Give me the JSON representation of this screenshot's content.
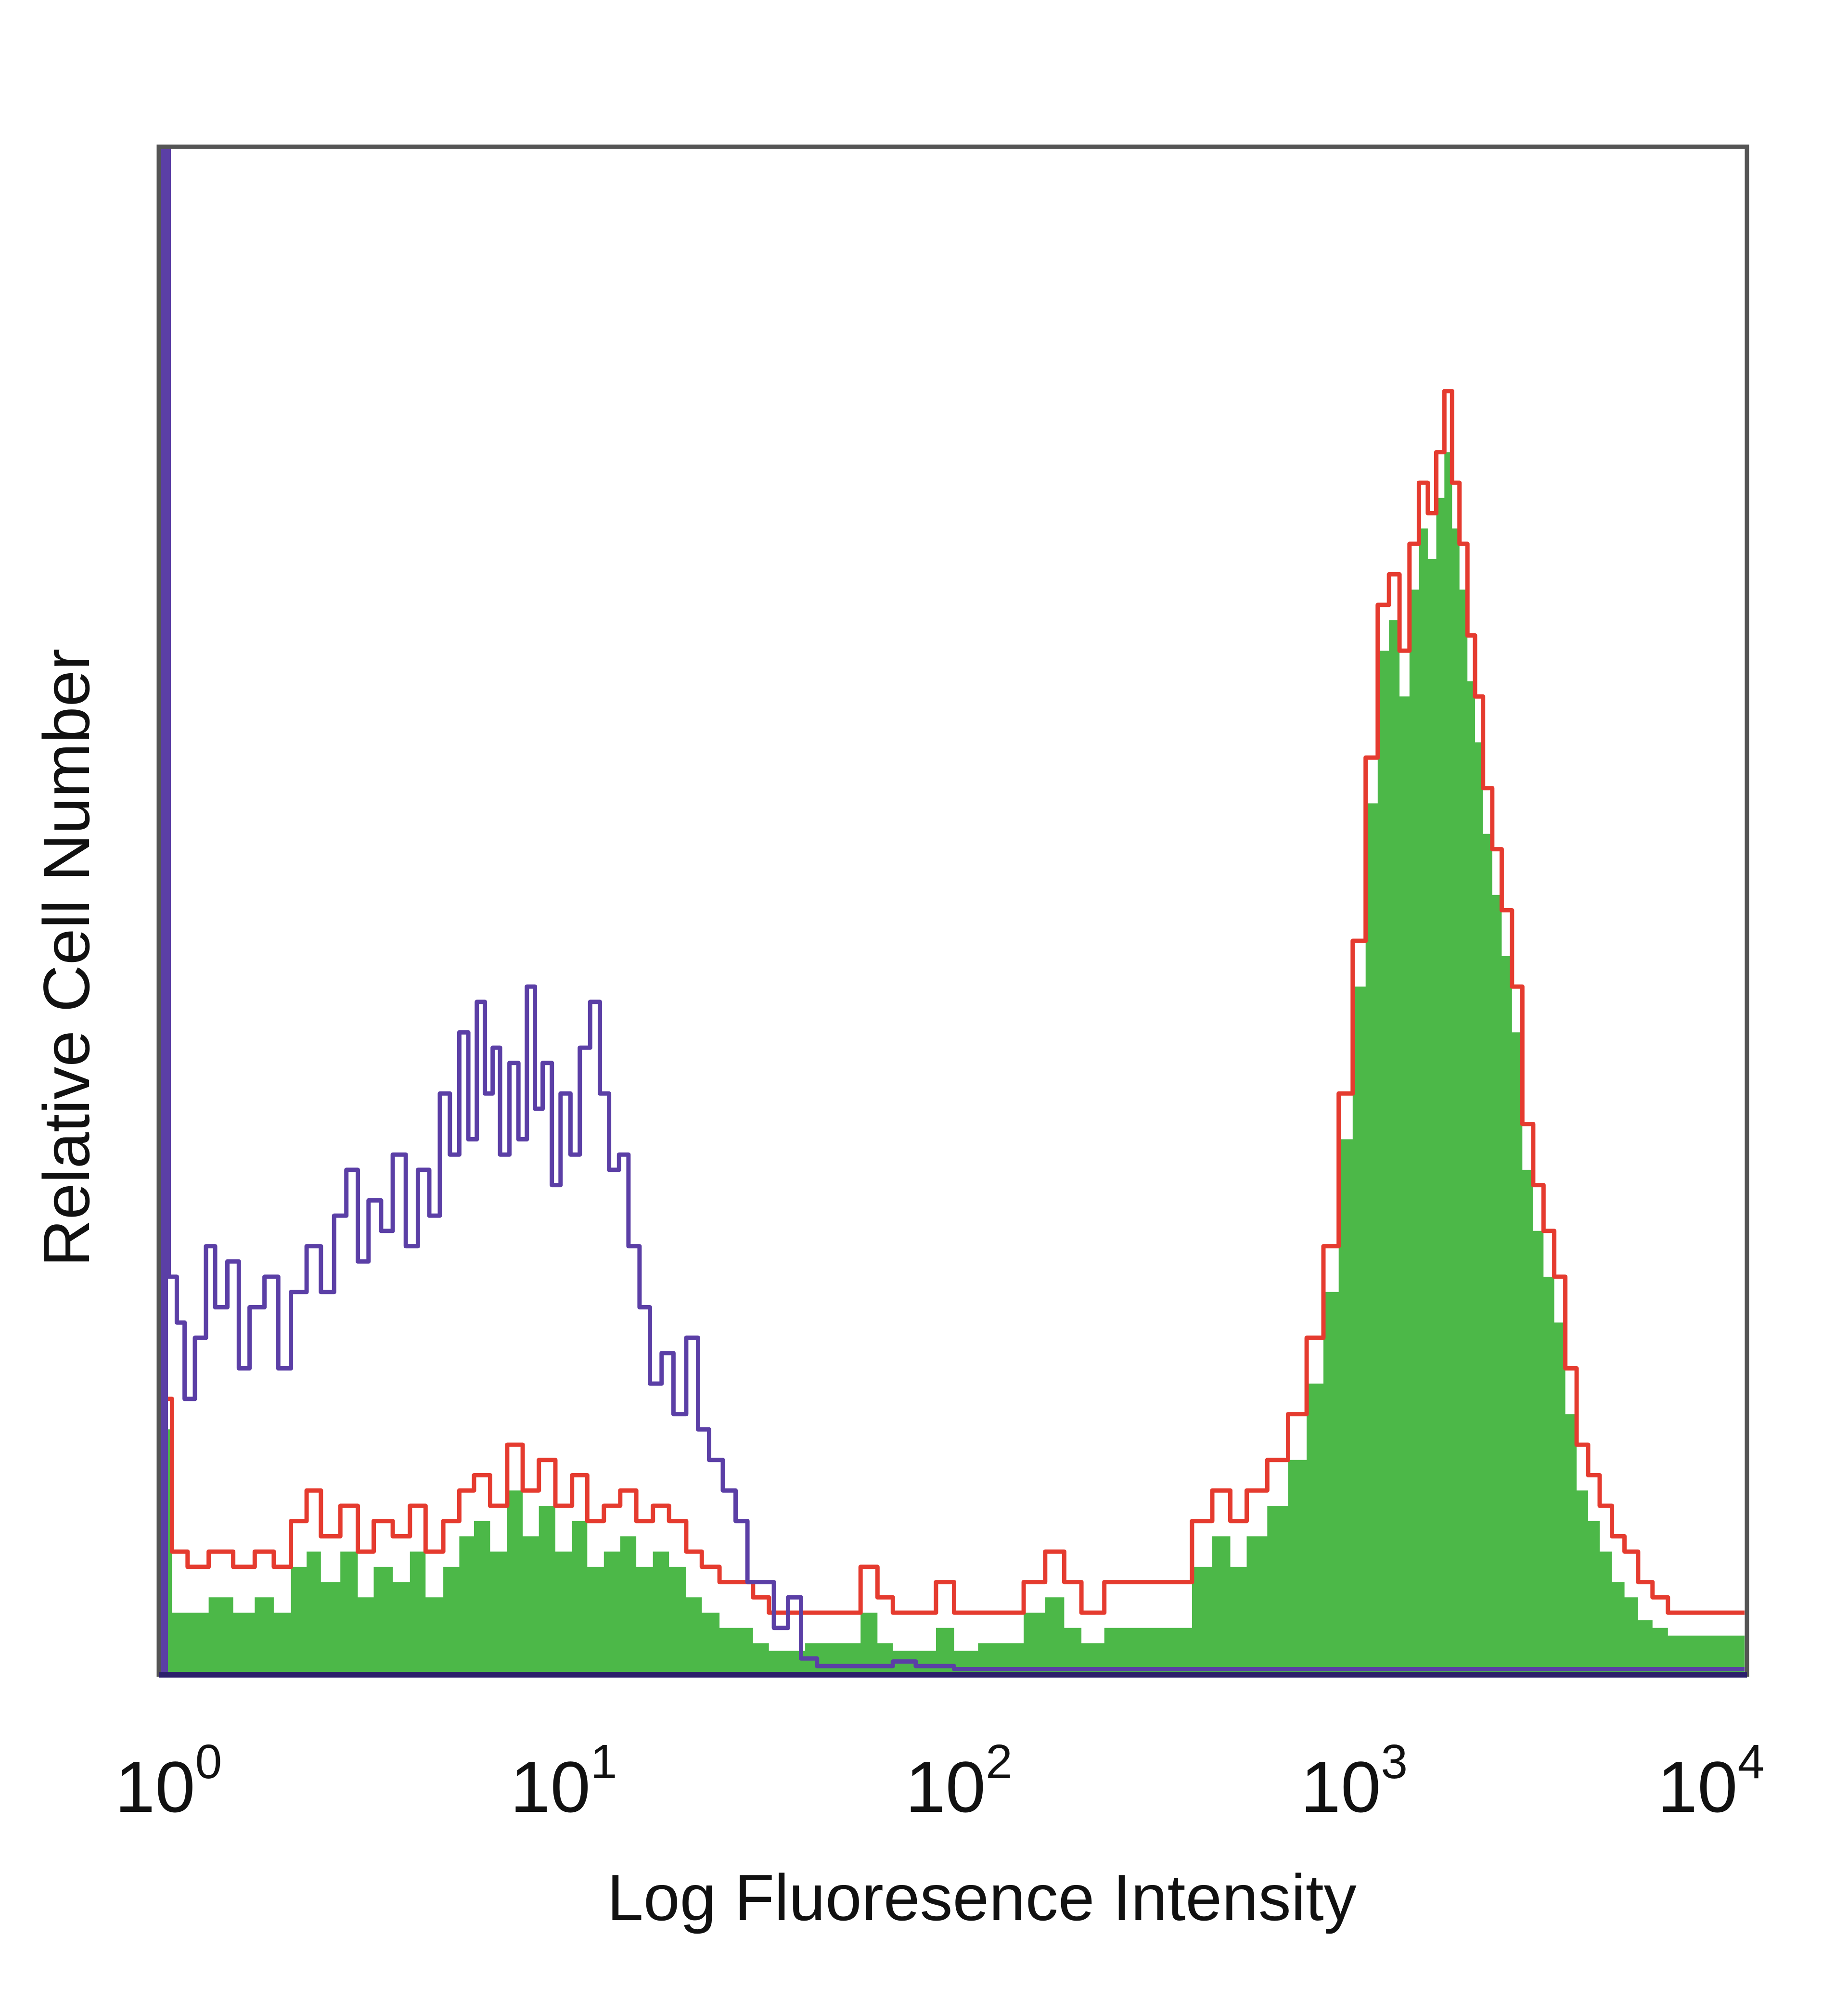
{
  "chart_data": {
    "type": "histogram",
    "xlabel": "Log Fluoresence Intensity",
    "ylabel": "Relative Cell Number",
    "x_scale": "log",
    "xlim": [
      1,
      10000
    ],
    "ylim": [
      0,
      100
    ],
    "x_ticks": [
      {
        "base": "10",
        "exp": "0",
        "value": 1
      },
      {
        "base": "10",
        "exp": "1",
        "value": 10
      },
      {
        "base": "10",
        "exp": "2",
        "value": 100
      },
      {
        "base": "10",
        "exp": "3",
        "value": 1000
      },
      {
        "base": "10",
        "exp": "4",
        "value": 10000
      }
    ],
    "grid": false,
    "series": [
      {
        "style": "outline",
        "color": "#5b3fa6",
        "points": [
          [
            1.0,
            100
          ],
          [
            1.03,
            26
          ],
          [
            1.08,
            23
          ],
          [
            1.13,
            18
          ],
          [
            1.2,
            22
          ],
          [
            1.28,
            28
          ],
          [
            1.35,
            24
          ],
          [
            1.45,
            27
          ],
          [
            1.55,
            20
          ],
          [
            1.65,
            24
          ],
          [
            1.8,
            26
          ],
          [
            1.95,
            20
          ],
          [
            2.1,
            25
          ],
          [
            2.3,
            28
          ],
          [
            2.5,
            25
          ],
          [
            2.7,
            30
          ],
          [
            2.9,
            33
          ],
          [
            3.1,
            27
          ],
          [
            3.3,
            31
          ],
          [
            3.55,
            29
          ],
          [
            3.8,
            34
          ],
          [
            4.1,
            28
          ],
          [
            4.4,
            33
          ],
          [
            4.7,
            30
          ],
          [
            5.0,
            38
          ],
          [
            5.3,
            34
          ],
          [
            5.6,
            42
          ],
          [
            5.9,
            35
          ],
          [
            6.2,
            44
          ],
          [
            6.5,
            38
          ],
          [
            6.8,
            41
          ],
          [
            7.1,
            34
          ],
          [
            7.5,
            40
          ],
          [
            7.9,
            35
          ],
          [
            8.3,
            45
          ],
          [
            8.7,
            37
          ],
          [
            9.1,
            40
          ],
          [
            9.6,
            32
          ],
          [
            10.1,
            38
          ],
          [
            10.7,
            34
          ],
          [
            11.3,
            41
          ],
          [
            12.0,
            44
          ],
          [
            12.7,
            38
          ],
          [
            13.4,
            33
          ],
          [
            14.2,
            34
          ],
          [
            15.0,
            28
          ],
          [
            16.0,
            24
          ],
          [
            17.0,
            19
          ],
          [
            18.2,
            21
          ],
          [
            19.5,
            17
          ],
          [
            21.0,
            22
          ],
          [
            22.5,
            16
          ],
          [
            24.0,
            14
          ],
          [
            26.0,
            12
          ],
          [
            28.0,
            10
          ],
          [
            30.0,
            6
          ],
          [
            32.5,
            6
          ],
          [
            35.0,
            3
          ],
          [
            38.0,
            5
          ],
          [
            41.0,
            1
          ],
          [
            45.0,
            0.5
          ],
          [
            50.0,
            0.5
          ],
          [
            60.0,
            0.5
          ],
          [
            70.0,
            0.8
          ],
          [
            80.0,
            0.5
          ],
          [
            100.0,
            0.3
          ],
          [
            10000.0,
            0.3
          ]
        ]
      },
      {
        "style": "outline",
        "color": "#e53b2f",
        "points": [
          [
            1.0,
            18
          ],
          [
            1.05,
            8
          ],
          [
            1.15,
            7
          ],
          [
            1.3,
            8
          ],
          [
            1.5,
            7
          ],
          [
            1.7,
            8
          ],
          [
            1.9,
            7
          ],
          [
            2.1,
            10
          ],
          [
            2.3,
            12
          ],
          [
            2.5,
            9
          ],
          [
            2.8,
            11
          ],
          [
            3.1,
            8
          ],
          [
            3.4,
            10
          ],
          [
            3.8,
            9
          ],
          [
            4.2,
            11
          ],
          [
            4.6,
            8
          ],
          [
            5.1,
            10
          ],
          [
            5.6,
            12
          ],
          [
            6.1,
            13
          ],
          [
            6.7,
            11
          ],
          [
            7.4,
            15
          ],
          [
            8.1,
            12
          ],
          [
            8.9,
            14
          ],
          [
            9.8,
            11
          ],
          [
            10.8,
            13
          ],
          [
            11.8,
            10
          ],
          [
            13.0,
            11
          ],
          [
            14.3,
            12
          ],
          [
            15.7,
            10
          ],
          [
            17.3,
            11
          ],
          [
            19.0,
            10
          ],
          [
            21.0,
            8
          ],
          [
            23.0,
            7
          ],
          [
            25.5,
            6
          ],
          [
            28.0,
            6
          ],
          [
            31.0,
            5
          ],
          [
            34.0,
            4
          ],
          [
            38.0,
            4
          ],
          [
            42.0,
            4
          ],
          [
            47.0,
            4
          ],
          [
            52.0,
            4
          ],
          [
            58.0,
            7
          ],
          [
            64.0,
            5
          ],
          [
            70.0,
            4
          ],
          [
            80.0,
            4
          ],
          [
            90.0,
            6
          ],
          [
            100.0,
            4
          ],
          [
            115.0,
            4
          ],
          [
            130.0,
            4
          ],
          [
            150.0,
            6
          ],
          [
            170.0,
            8
          ],
          [
            190.0,
            6
          ],
          [
            210.0,
            4
          ],
          [
            240.0,
            6
          ],
          [
            270.0,
            6
          ],
          [
            300.0,
            6
          ],
          [
            350.0,
            6
          ],
          [
            400.0,
            10
          ],
          [
            450.0,
            12
          ],
          [
            500.0,
            10
          ],
          [
            550.0,
            12
          ],
          [
            620.0,
            14
          ],
          [
            700.0,
            17
          ],
          [
            780.0,
            22
          ],
          [
            860.0,
            28
          ],
          [
            940.0,
            38
          ],
          [
            1020.0,
            48
          ],
          [
            1100.0,
            60
          ],
          [
            1180.0,
            70
          ],
          [
            1260.0,
            72
          ],
          [
            1340.0,
            67
          ],
          [
            1420.0,
            74
          ],
          [
            1500.0,
            78
          ],
          [
            1580.0,
            76
          ],
          [
            1660.0,
            80
          ],
          [
            1740.0,
            84
          ],
          [
            1820.0,
            78
          ],
          [
            1900.0,
            74
          ],
          [
            1990.0,
            68
          ],
          [
            2080.0,
            64
          ],
          [
            2180.0,
            58
          ],
          [
            2300.0,
            54
          ],
          [
            2430.0,
            50
          ],
          [
            2580.0,
            45
          ],
          [
            2740.0,
            36
          ],
          [
            2920.0,
            32
          ],
          [
            3100.0,
            29
          ],
          [
            3300.0,
            26
          ],
          [
            3520.0,
            20
          ],
          [
            3760.0,
            15
          ],
          [
            4020.0,
            13
          ],
          [
            4300.0,
            11
          ],
          [
            4620.0,
            9
          ],
          [
            4970.0,
            8
          ],
          [
            5380.0,
            6
          ],
          [
            5850.0,
            5
          ],
          [
            6400.0,
            4
          ],
          [
            7050.0,
            4
          ],
          [
            7800.0,
            4
          ],
          [
            8700.0,
            4
          ],
          [
            9500.0,
            4
          ],
          [
            10000.0,
            4
          ]
        ]
      },
      {
        "style": "filled",
        "color": "#4cb848",
        "points": [
          [
            1.0,
            16
          ],
          [
            1.05,
            4
          ],
          [
            1.15,
            4
          ],
          [
            1.3,
            5
          ],
          [
            1.5,
            4
          ],
          [
            1.7,
            5
          ],
          [
            1.9,
            4
          ],
          [
            2.1,
            7
          ],
          [
            2.3,
            8
          ],
          [
            2.5,
            6
          ],
          [
            2.8,
            8
          ],
          [
            3.1,
            5
          ],
          [
            3.4,
            7
          ],
          [
            3.8,
            6
          ],
          [
            4.2,
            8
          ],
          [
            4.6,
            5
          ],
          [
            5.1,
            7
          ],
          [
            5.6,
            9
          ],
          [
            6.1,
            10
          ],
          [
            6.7,
            8
          ],
          [
            7.4,
            12
          ],
          [
            8.1,
            9
          ],
          [
            8.9,
            11
          ],
          [
            9.8,
            8
          ],
          [
            10.8,
            10
          ],
          [
            11.8,
            7
          ],
          [
            13.0,
            8
          ],
          [
            14.3,
            9
          ],
          [
            15.7,
            7
          ],
          [
            17.3,
            8
          ],
          [
            19.0,
            7
          ],
          [
            21.0,
            5
          ],
          [
            23.0,
            4
          ],
          [
            25.5,
            3
          ],
          [
            28.0,
            3
          ],
          [
            31.0,
            2
          ],
          [
            34.0,
            1.5
          ],
          [
            38.0,
            1.5
          ],
          [
            42.0,
            2
          ],
          [
            47.0,
            2
          ],
          [
            52.0,
            2
          ],
          [
            58.0,
            4
          ],
          [
            64.0,
            2
          ],
          [
            70.0,
            1.5
          ],
          [
            80.0,
            1.5
          ],
          [
            90.0,
            3
          ],
          [
            100.0,
            1.5
          ],
          [
            115.0,
            2
          ],
          [
            130.0,
            2
          ],
          [
            150.0,
            4
          ],
          [
            170.0,
            5
          ],
          [
            190.0,
            3
          ],
          [
            210.0,
            2
          ],
          [
            240.0,
            3
          ],
          [
            270.0,
            3
          ],
          [
            300.0,
            3
          ],
          [
            350.0,
            3
          ],
          [
            400.0,
            7
          ],
          [
            450.0,
            9
          ],
          [
            500.0,
            7
          ],
          [
            550.0,
            9
          ],
          [
            620.0,
            11
          ],
          [
            700.0,
            14
          ],
          [
            780.0,
            19
          ],
          [
            860.0,
            25
          ],
          [
            940.0,
            35
          ],
          [
            1020.0,
            45
          ],
          [
            1100.0,
            57
          ],
          [
            1180.0,
            67
          ],
          [
            1260.0,
            69
          ],
          [
            1340.0,
            64
          ],
          [
            1420.0,
            71
          ],
          [
            1500.0,
            75
          ],
          [
            1580.0,
            73
          ],
          [
            1660.0,
            77
          ],
          [
            1740.0,
            80
          ],
          [
            1820.0,
            75
          ],
          [
            1900.0,
            71
          ],
          [
            1990.0,
            65
          ],
          [
            2080.0,
            61
          ],
          [
            2180.0,
            55
          ],
          [
            2300.0,
            51
          ],
          [
            2430.0,
            47
          ],
          [
            2580.0,
            42
          ],
          [
            2740.0,
            33
          ],
          [
            2920.0,
            29
          ],
          [
            3100.0,
            26
          ],
          [
            3300.0,
            23
          ],
          [
            3520.0,
            17
          ],
          [
            3760.0,
            12
          ],
          [
            4020.0,
            10
          ],
          [
            4300.0,
            8
          ],
          [
            4620.0,
            6
          ],
          [
            4970.0,
            5
          ],
          [
            5380.0,
            3.5
          ],
          [
            5850.0,
            3
          ],
          [
            6400.0,
            2.5
          ],
          [
            7050.0,
            2.5
          ],
          [
            7800.0,
            2.5
          ],
          [
            8700.0,
            2.5
          ],
          [
            9500.0,
            2.5
          ],
          [
            10000.0,
            2.5
          ]
        ]
      }
    ]
  }
}
